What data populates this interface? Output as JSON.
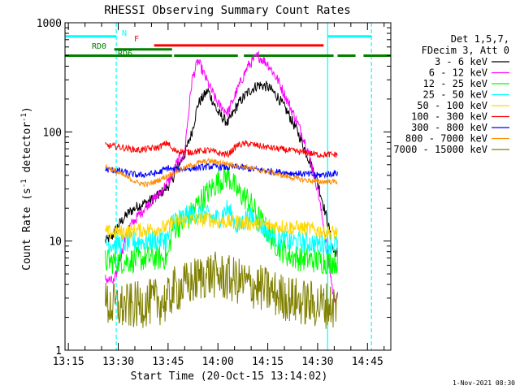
{
  "chart_data": {
    "type": "line",
    "title": "RHESSI Observing Summary Count Rates",
    "xlabel": "Start Time (20-Oct-15 13:14:02)",
    "ylabel": "Count Rate (s⁻¹ detector⁻¹)",
    "ylabel_parts": {
      "main": "Count Rate (s",
      "sup1": "-1",
      "mid": " detector",
      "sup2": "-1",
      "end": ")"
    },
    "yscale": "log",
    "xlim": [
      13.233,
      14.867
    ],
    "ylim": [
      1,
      1000
    ],
    "xticks": [
      {
        "v": 13.25,
        "label": "13:15"
      },
      {
        "v": 13.5,
        "label": "13:30"
      },
      {
        "v": 13.75,
        "label": "13:45"
      },
      {
        "v": 14.0,
        "label": "14:00"
      },
      {
        "v": 14.25,
        "label": "14:15"
      },
      {
        "v": 14.5,
        "label": "14:30"
      },
      {
        "v": 14.75,
        "label": "14:45"
      }
    ],
    "yticks": [
      {
        "v": 1,
        "label": "1"
      },
      {
        "v": 10,
        "label": "10"
      },
      {
        "v": 100,
        "label": "100"
      },
      {
        "v": 1000,
        "label": "1000"
      }
    ],
    "legend": {
      "placement": "right",
      "header": [
        "Det 1,5,7,",
        "FDecim 3, Att 0"
      ]
    },
    "footer_date": "1-Nov-2021 08:30",
    "flags": [
      {
        "label": "N",
        "color": "#00ffff",
        "y": 750,
        "segments": [
          [
            13.233,
            13.49
          ],
          [
            14.55,
            14.77
          ]
        ]
      },
      {
        "label": "F",
        "color": "#ff0000",
        "y": 620,
        "segments": [
          [
            13.68,
            14.53
          ]
        ]
      },
      {
        "label": "RD0",
        "color": "#008000",
        "y": 570,
        "segments": [
          [
            13.48,
            13.77
          ]
        ]
      },
      {
        "label": "RD6",
        "color": "#008000",
        "y": 500,
        "segments": [
          [
            13.233,
            13.77
          ],
          [
            13.78,
            14.1
          ],
          [
            14.13,
            14.58
          ],
          [
            14.6,
            14.69
          ],
          [
            14.73,
            14.867
          ]
        ]
      }
    ],
    "vlines": [
      {
        "x": 13.233,
        "color": "#00ffff",
        "dashed": false
      },
      {
        "x": 13.49,
        "color": "#00ffff",
        "dashed": true
      },
      {
        "x": 14.55,
        "color": "#00ffff",
        "dashed": false
      },
      {
        "x": 14.77,
        "color": "#00ffff",
        "dashed": true
      }
    ],
    "data_range": [
      13.435,
      14.6
    ],
    "series": [
      {
        "name": "3 - 6 keV",
        "color": "#000000",
        "x": [
          13.44,
          13.47,
          13.5,
          13.55,
          13.6,
          13.65,
          13.7,
          13.75,
          13.77,
          13.8,
          13.83,
          13.87,
          13.9,
          13.95,
          14.0,
          14.05,
          14.1,
          14.15,
          14.2,
          14.25,
          14.3,
          14.35,
          14.4,
          14.45,
          14.5,
          14.55,
          14.58,
          14.6
        ],
        "y": [
          10,
          11,
          14,
          18,
          21,
          23,
          26,
          32,
          36,
          50,
          60,
          100,
          180,
          240,
          150,
          120,
          180,
          230,
          270,
          260,
          210,
          150,
          100,
          60,
          35,
          15,
          8,
          8
        ]
      },
      {
        "name": "6 - 12 keV",
        "color": "#ff00ff",
        "x": [
          13.44,
          13.48,
          13.5,
          13.55,
          13.6,
          13.65,
          13.7,
          13.75,
          13.77,
          13.8,
          13.83,
          13.87,
          13.9,
          13.95,
          14.0,
          14.05,
          14.1,
          14.15,
          14.2,
          14.25,
          14.3,
          14.35,
          14.4,
          14.45,
          14.5,
          14.55,
          14.58,
          14.6
        ],
        "y": [
          4.5,
          4.2,
          6,
          13,
          17,
          22,
          26,
          35,
          40,
          55,
          60,
          300,
          450,
          280,
          180,
          150,
          250,
          400,
          500,
          420,
          300,
          190,
          120,
          70,
          30,
          8,
          3,
          3
        ]
      },
      {
        "name": "12 - 25 keV",
        "color": "#00ff00",
        "x": [
          13.44,
          13.5,
          13.55,
          13.6,
          13.65,
          13.7,
          13.75,
          13.77,
          13.8,
          13.85,
          13.9,
          13.95,
          14.0,
          14.05,
          14.1,
          14.15,
          14.2,
          14.25,
          14.3,
          14.35,
          14.4,
          14.45,
          14.5,
          14.55,
          14.6
        ],
        "y": [
          6.5,
          6.5,
          6.6,
          6.8,
          7,
          7,
          7.2,
          13,
          14,
          16,
          22,
          28,
          35,
          40,
          28,
          24,
          17,
          12,
          9,
          7.5,
          7,
          6.8,
          6.6,
          6.5,
          6.5
        ]
      },
      {
        "name": "25 - 50 keV",
        "color": "#00ffff",
        "x": [
          13.44,
          13.5,
          13.55,
          13.6,
          13.65,
          13.7,
          13.75,
          13.77,
          13.8,
          13.85,
          13.9,
          13.95,
          14.0,
          14.05,
          14.1,
          14.15,
          14.2,
          14.25,
          14.3,
          14.35,
          14.4,
          14.45,
          14.5,
          14.55,
          14.6
        ],
        "y": [
          9.5,
          9.5,
          9.7,
          10,
          10,
          10.3,
          10.5,
          16,
          16,
          17,
          18,
          17,
          16,
          20,
          13,
          17,
          15,
          12,
          10.5,
          10,
          9.8,
          9.6,
          9.5,
          9.5,
          9.5
        ]
      },
      {
        "name": "50 - 100 keV",
        "color": "#ffd700",
        "x": [
          13.44,
          13.5,
          13.6,
          13.7,
          13.75,
          13.77,
          13.85,
          13.95,
          14.0,
          14.05,
          14.1,
          14.15,
          14.25,
          14.35,
          14.45,
          14.5,
          14.55,
          14.6
        ],
        "y": [
          12,
          12,
          12.5,
          13,
          13.5,
          15,
          15.5,
          16,
          15,
          15,
          15,
          14.5,
          14,
          13.5,
          13,
          12.5,
          12,
          12
        ]
      },
      {
        "name": "100 - 300 keV",
        "color": "#ff0000",
        "x": [
          13.44,
          13.5,
          13.6,
          13.7,
          13.75,
          13.77,
          13.85,
          13.95,
          14.0,
          14.05,
          14.1,
          14.15,
          14.25,
          14.35,
          14.45,
          14.5,
          14.55,
          14.6
        ],
        "y": [
          75,
          73,
          68,
          72,
          80,
          68,
          65,
          68,
          64,
          62,
          76,
          78,
          72,
          68,
          64,
          62,
          62,
          62
        ]
      },
      {
        "name": "300 - 800 keV",
        "color": "#0000ff",
        "x": [
          13.44,
          13.5,
          13.6,
          13.7,
          13.75,
          13.77,
          13.85,
          13.95,
          14.0,
          14.05,
          14.1,
          14.15,
          14.25,
          14.35,
          14.45,
          14.5,
          14.55,
          14.6
        ],
        "y": [
          45,
          44,
          40,
          42,
          47,
          45,
          46,
          48,
          48,
          47,
          48,
          46,
          44,
          42,
          41,
          40,
          41,
          42
        ]
      },
      {
        "name": "800 - 7000 keV",
        "color": "#ff8c00",
        "x": [
          13.44,
          13.5,
          13.55,
          13.6,
          13.65,
          13.7,
          13.75,
          13.8,
          13.85,
          13.9,
          13.95,
          14.0,
          14.05,
          14.1,
          14.15,
          14.2,
          14.25,
          14.3,
          14.35,
          14.4,
          14.45,
          14.5,
          14.55,
          14.6
        ],
        "y": [
          48,
          42,
          38,
          34,
          33,
          36,
          40,
          44,
          48,
          52,
          54,
          53,
          51,
          49,
          47,
          45,
          43,
          41,
          39,
          37,
          36,
          35,
          35,
          35
        ]
      },
      {
        "name": "7000 - 15000 keV",
        "color": "#808000",
        "x": [
          13.44,
          13.5,
          13.55,
          13.6,
          13.65,
          13.7,
          13.75,
          13.77,
          13.85,
          13.9,
          13.95,
          14.0,
          14.05,
          14.1,
          14.15,
          14.2,
          14.25,
          14.3,
          14.35,
          14.4,
          14.45,
          14.5,
          14.55,
          14.6
        ],
        "y": [
          2.6,
          2.5,
          2.5,
          2.6,
          2.7,
          2.8,
          2.8,
          3.5,
          4,
          4.5,
          5,
          4.8,
          4.5,
          4.3,
          4.0,
          3.8,
          3.5,
          3.2,
          3.0,
          2.8,
          2.7,
          2.6,
          2.6,
          2.5
        ]
      }
    ]
  }
}
